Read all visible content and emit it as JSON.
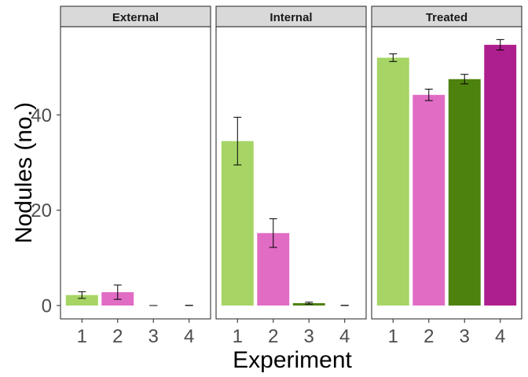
{
  "chart_data": {
    "type": "bar",
    "xlabel": "Experiment",
    "ylabel": "Nodules (no.)",
    "ylim": [
      -2.8,
      58.5
    ],
    "yticks": [
      0,
      20,
      40
    ],
    "categories": [
      "1",
      "2",
      "3",
      "4"
    ],
    "colors": [
      "#a6d465",
      "#e06cc4",
      "#4e820e",
      "#ae1f8e"
    ],
    "grid": false,
    "legend": "none",
    "facets": [
      {
        "name": "External",
        "values": [
          2.2,
          2.8,
          0,
          0
        ],
        "errors": [
          0.7,
          1.5,
          0,
          0.05
        ]
      },
      {
        "name": "Internal",
        "values": [
          34.5,
          15.2,
          0.5,
          0
        ],
        "errors": [
          5.0,
          3.0,
          0.2,
          0.05
        ]
      },
      {
        "name": "Treated",
        "values": [
          52,
          44.2,
          47.5,
          54.7
        ],
        "errors": [
          0.8,
          1.2,
          1.0,
          1.1
        ]
      }
    ]
  }
}
